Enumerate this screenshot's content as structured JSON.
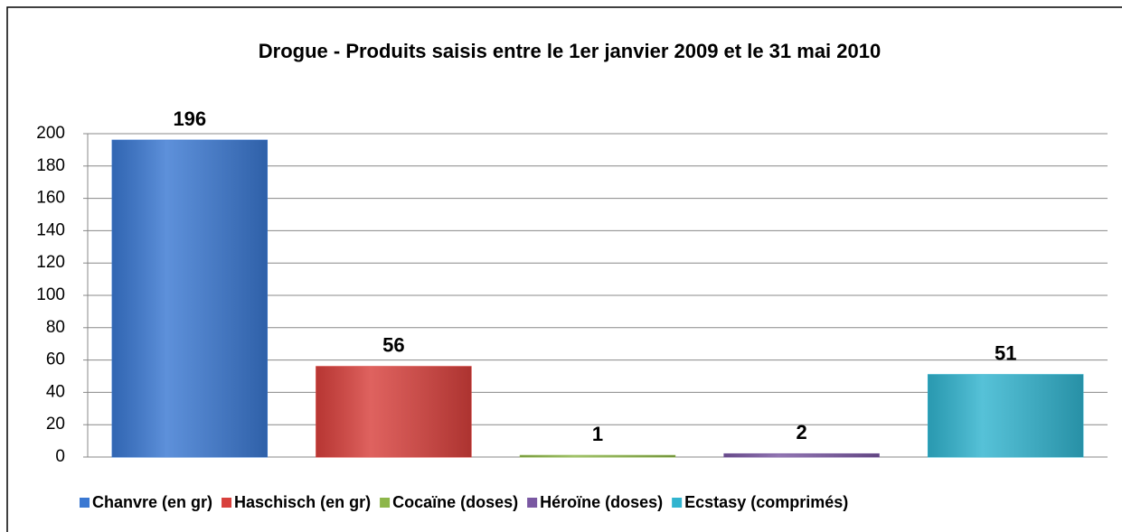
{
  "chart_data": {
    "type": "bar",
    "title": "Drogue - Produits saisis entre le 1er janvier 2009 et le 31 mai 2010",
    "series": [
      {
        "name": "Chanvre (en gr)",
        "color": "#3a78d2",
        "values": [
          196
        ]
      },
      {
        "name": "Haschisch (en gr)",
        "color": "#d8403c",
        "values": [
          56
        ]
      },
      {
        "name": "Cocaïne (doses)",
        "color": "#8db64a",
        "values": [
          1
        ]
      },
      {
        "name": "Héroïne (doses)",
        "color": "#7a58a2",
        "values": [
          2
        ]
      },
      {
        "name": "Ecstasy (comprimés)",
        "color": "#31b4cf",
        "values": [
          51
        ]
      }
    ],
    "ylim": [
      0,
      200
    ],
    "yticks": [
      0,
      20,
      40,
      60,
      80,
      100,
      120,
      140,
      160,
      180,
      200
    ],
    "grid": true,
    "legend": "bottom"
  }
}
